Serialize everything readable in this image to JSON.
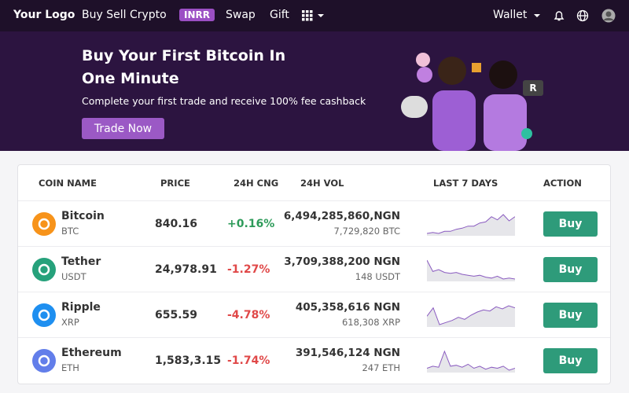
{
  "nav": {
    "logo": "Your Logo",
    "links": [
      "Buy Sell Crypto",
      "INRR",
      "Swap",
      "Gift"
    ],
    "wallet": "Wallet"
  },
  "banner": {
    "title": "Buy Your First Bitcoin In One Minute",
    "subtitle": "Complete your first trade and receive 100% fee cashback",
    "button": "Trade Now"
  },
  "table": {
    "headers": [
      "COIN NAME",
      "PRICE",
      "24H CNG",
      "24H VOL",
      "LAST 7 DAYS",
      "ACTION"
    ],
    "rows": [
      {
        "name": "Bitcoin",
        "symbol": "BTC",
        "icon_color": "#f7931a",
        "price": "840.16",
        "change": "+0.16%",
        "volume": "6,494,285,860,NGN",
        "volume_alt": "7,729,820 BTC",
        "last_7_days": [
          20,
          21,
          20,
          22,
          22,
          24,
          25,
          27,
          27,
          30,
          31,
          36,
          33,
          38,
          32,
          36
        ],
        "action": "Buy"
      },
      {
        "name": "Tether",
        "symbol": "USDT",
        "icon_color": "#26a17b",
        "price": "24,978.91",
        "change": "-1.27%",
        "volume": "3,709,388,200 NGN",
        "volume_alt": "148 USDT",
        "last_7_days": [
          40,
          28,
          30,
          27,
          26,
          27,
          25,
          24,
          23,
          24,
          22,
          21,
          23,
          20,
          21,
          20
        ],
        "action": "Buy"
      },
      {
        "name": "Ripple",
        "symbol": "XRP",
        "icon_color": "#1e8ff0",
        "price": "655.59",
        "change": "-4.78%",
        "volume": "405,358,616 NGN",
        "volume_alt": "618,308 XRP",
        "last_7_days": [
          28,
          36,
          20,
          22,
          24,
          27,
          25,
          29,
          32,
          34,
          33,
          37,
          35,
          38,
          36
        ],
        "action": "Buy"
      },
      {
        "name": "Ethereum",
        "symbol": "ETH",
        "icon_color": "#627eea",
        "price": "1,583,3.15",
        "change": "-1.74%",
        "volume": "391,546,124 NGN",
        "volume_alt": "247 ETH",
        "last_7_days": [
          21,
          23,
          22,
          38,
          23,
          24,
          22,
          25,
          21,
          23,
          20,
          22,
          21,
          23,
          19,
          21
        ],
        "action": "Buy"
      }
    ]
  }
}
